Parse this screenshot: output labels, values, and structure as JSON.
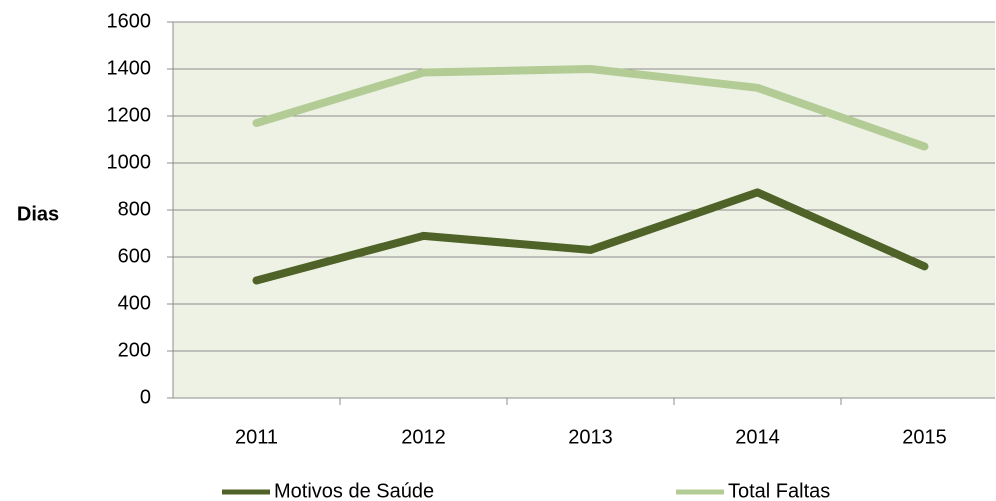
{
  "chart_data": {
    "type": "line",
    "y_label": "Dias",
    "categories": [
      "2011",
      "2012",
      "2013",
      "2014",
      "2015"
    ],
    "series": [
      {
        "name": "Motivos de Saúde",
        "color": "#4f6228",
        "values": [
          500,
          690,
          630,
          875,
          560
        ]
      },
      {
        "name": "Total Faltas",
        "color": "#b3cc96",
        "values": [
          1170,
          1385,
          1400,
          1320,
          1070
        ]
      }
    ],
    "ylim": [
      0,
      1600
    ],
    "yticks": [
      0,
      200,
      400,
      600,
      800,
      1000,
      1200,
      1400,
      1600
    ],
    "grid": true,
    "legend": "bottom"
  }
}
